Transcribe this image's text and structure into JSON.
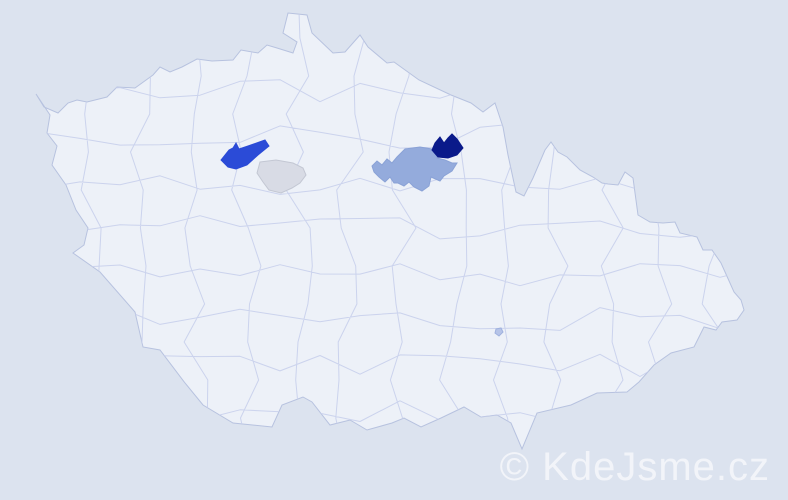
{
  "page": {
    "background_color": "#dce3ef"
  },
  "map": {
    "description": "czech-republic-district-choropleth",
    "country_fill": "#edf1f8",
    "district_border_color": "#c9d1ec",
    "country_outline_color": "#b7c2df",
    "highlighted_districts": [
      {
        "id": "highlight-royal-blue",
        "color": "#2b4bd7",
        "border": "#2b4bd7"
      },
      {
        "id": "highlight-light-gray",
        "color": "#d8dbe5",
        "border": "#c3c7d3"
      },
      {
        "id": "highlight-periwinkle",
        "color": "#94abdc",
        "border": "#8aa2d6"
      },
      {
        "id": "highlight-navy",
        "color": "#0a1a8a",
        "border": "#0a1a8a"
      },
      {
        "id": "highlight-small-dot",
        "color": "#b6c4e8",
        "border": "#9fb1de"
      }
    ]
  },
  "watermark": {
    "text": "© KdeJsme.cz"
  }
}
